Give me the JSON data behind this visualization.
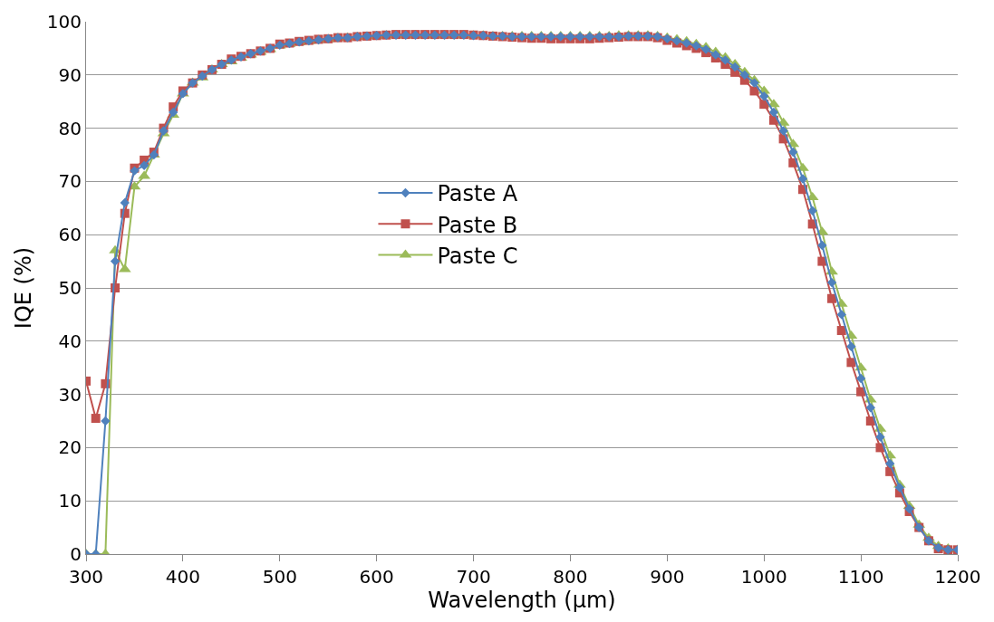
{
  "chart_data": {
    "type": "line",
    "xlabel": "Wavelength (µm)",
    "ylabel": "IQE (%)",
    "x": [
      300,
      310,
      320,
      330,
      340,
      350,
      360,
      370,
      380,
      390,
      400,
      410,
      420,
      430,
      440,
      450,
      460,
      470,
      480,
      490,
      500,
      510,
      520,
      530,
      540,
      550,
      560,
      570,
      580,
      590,
      600,
      610,
      620,
      630,
      640,
      650,
      660,
      670,
      680,
      690,
      700,
      710,
      720,
      730,
      740,
      750,
      760,
      770,
      780,
      790,
      800,
      810,
      820,
      830,
      840,
      850,
      860,
      870,
      880,
      890,
      900,
      910,
      920,
      930,
      940,
      950,
      960,
      970,
      980,
      990,
      1000,
      1010,
      1020,
      1030,
      1040,
      1050,
      1060,
      1070,
      1080,
      1090,
      1100,
      1110,
      1120,
      1130,
      1140,
      1150,
      1160,
      1170,
      1180,
      1190,
      1200
    ],
    "series": [
      {
        "name": "Paste A",
        "color": "#4f81bd",
        "marker": "diamond",
        "values": [
          0,
          0,
          25,
          55,
          66,
          72,
          73,
          75,
          79.5,
          83,
          86.5,
          88.5,
          89.8,
          91,
          92,
          92.8,
          93.4,
          94,
          94.5,
          95,
          95.6,
          95.9,
          96.2,
          96.4,
          96.6,
          96.8,
          97,
          97,
          97.2,
          97.3,
          97.4,
          97.5,
          97.5,
          97.5,
          97.5,
          97.5,
          97.5,
          97.5,
          97.5,
          97.5,
          97.4,
          97.4,
          97.3,
          97.3,
          97.2,
          97.2,
          97.2,
          97.2,
          97.2,
          97.2,
          97.2,
          97.2,
          97.2,
          97.2,
          97.2,
          97.2,
          97.3,
          97.3,
          97.3,
          97.2,
          96.8,
          96.4,
          96,
          95.5,
          94.8,
          93.8,
          92.8,
          91.5,
          90,
          88.5,
          86,
          83,
          79.5,
          75.5,
          70.5,
          64.5,
          58,
          51,
          45,
          39,
          33,
          27.5,
          22,
          17,
          12.5,
          8.5,
          5,
          2.5,
          1.2,
          0.8,
          0.8
        ]
      },
      {
        "name": "Paste B",
        "color": "#c0504d",
        "marker": "square",
        "values": [
          32.5,
          25.5,
          32,
          50,
          64,
          72.5,
          74,
          75.5,
          80,
          84,
          87,
          88.5,
          90,
          91,
          92,
          93,
          93.5,
          94,
          94.5,
          95,
          95.8,
          96,
          96.3,
          96.5,
          96.7,
          96.8,
          97,
          97,
          97.2,
          97.3,
          97.4,
          97.5,
          97.6,
          97.6,
          97.6,
          97.6,
          97.6,
          97.6,
          97.6,
          97.6,
          97.5,
          97.4,
          97.3,
          97.2,
          97.1,
          97,
          96.9,
          96.9,
          96.8,
          96.8,
          96.8,
          96.8,
          96.8,
          96.9,
          97,
          97.1,
          97.2,
          97.2,
          97.2,
          97,
          96.5,
          96,
          95.5,
          95,
          94.2,
          93.2,
          92,
          90.5,
          89,
          87,
          84.5,
          81.5,
          78,
          73.5,
          68.5,
          62,
          55,
          48,
          42,
          36,
          30.5,
          25,
          20,
          15.5,
          11.5,
          8,
          5,
          2.5,
          1,
          0.8,
          0.8
        ]
      },
      {
        "name": "Paste C",
        "color": "#9bbb59",
        "marker": "triangle",
        "values": [
          0,
          0,
          0,
          57,
          53.5,
          69,
          71,
          75,
          79,
          82.5,
          86.5,
          88.5,
          89.5,
          91,
          92,
          92.5,
          93.2,
          93.8,
          94.3,
          94.8,
          95.5,
          95.8,
          96.1,
          96.3,
          96.5,
          96.7,
          96.9,
          97,
          97.1,
          97.2,
          97.3,
          97.4,
          97.4,
          97.4,
          97.4,
          97.4,
          97.4,
          97.4,
          97.4,
          97.4,
          97.4,
          97.4,
          97.3,
          97.3,
          97.3,
          97.3,
          97.3,
          97.3,
          97.3,
          97.3,
          97.3,
          97.3,
          97.3,
          97.3,
          97.3,
          97.4,
          97.4,
          97.4,
          97.4,
          97.3,
          97,
          96.7,
          96.3,
          95.8,
          95.2,
          94.3,
          93.3,
          92,
          90.5,
          89,
          87,
          84.5,
          81,
          77,
          72.5,
          67,
          60.5,
          53,
          47,
          41,
          35,
          29,
          23.5,
          18.5,
          13,
          9,
          5.5,
          3,
          1.5,
          1,
          0.8
        ]
      }
    ],
    "xlim": [
      300,
      1200
    ],
    "xticks": [
      300,
      400,
      500,
      600,
      700,
      800,
      900,
      1000,
      1100,
      1200
    ],
    "ylim": [
      0,
      100
    ],
    "yticks": [
      0,
      10,
      20,
      30,
      40,
      50,
      60,
      70,
      80,
      90,
      100
    ],
    "grid": "y",
    "legend": "center",
    "line_style": "solid"
  }
}
